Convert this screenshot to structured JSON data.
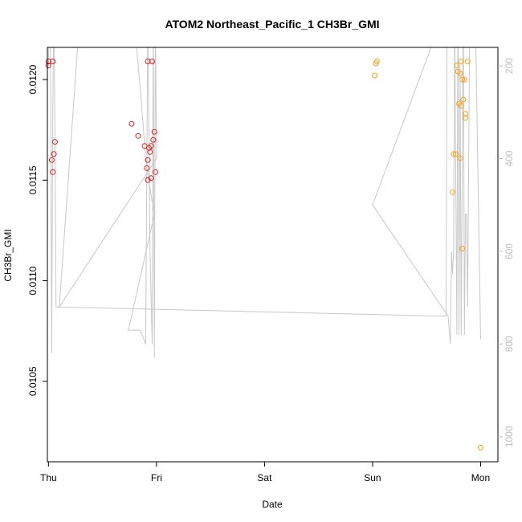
{
  "chart_data": {
    "type": "scatter",
    "title": "ATOM2 Northeast_Pacific_1 CH3Br_GMI",
    "xlabel": "Date",
    "ylabel": "CH3Br_GMI",
    "x_ticks": [
      "Thu",
      "Fri",
      "Sat",
      "Sun",
      "Mon"
    ],
    "xlim": [
      -0.01,
      4.16
    ],
    "y_ticks": [
      "0.0105",
      "0.0110",
      "0.0115",
      "0.0120"
    ],
    "ylim": [
      0.0101,
      0.01216
    ],
    "y2_ticks": [
      "200",
      "400",
      "600",
      "800",
      "1000"
    ],
    "y2lim": [
      1054,
      160
    ],
    "y2_color": "#bdbdbd",
    "grid": false,
    "series": [
      {
        "color": "#e41a1c",
        "points": [
          {
            "x": 0.0,
            "y": 0.01209
          },
          {
            "x": 0.0,
            "y": 0.01207
          },
          {
            "x": 0.04,
            "y": 0.01209
          },
          {
            "x": 0.06,
            "y": 0.01169
          },
          {
            "x": 0.05,
            "y": 0.01163
          },
          {
            "x": 0.03,
            "y": 0.0116
          },
          {
            "x": 0.04,
            "y": 0.01154
          },
          {
            "x": 0.77,
            "y": 0.01178
          },
          {
            "x": 0.83,
            "y": 0.01172
          },
          {
            "x": 0.89,
            "y": 0.01167
          },
          {
            "x": 0.92,
            "y": 0.01209
          },
          {
            "x": 0.96,
            "y": 0.01209
          },
          {
            "x": 0.93,
            "y": 0.01166
          },
          {
            "x": 0.95,
            "y": 0.01167
          },
          {
            "x": 0.94,
            "y": 0.01164
          },
          {
            "x": 0.97,
            "y": 0.0117
          },
          {
            "x": 0.98,
            "y": 0.01174
          },
          {
            "x": 0.92,
            "y": 0.0116
          },
          {
            "x": 0.91,
            "y": 0.01156
          },
          {
            "x": 0.99,
            "y": 0.01154
          },
          {
            "x": 0.95,
            "y": 0.01151
          },
          {
            "x": 0.92,
            "y": 0.0115
          }
        ]
      },
      {
        "color": "#ff9f1c",
        "points": [
          {
            "x": 3.04,
            "y": 0.01209
          },
          {
            "x": 3.03,
            "y": 0.01208
          },
          {
            "x": 3.02,
            "y": 0.01202
          },
          {
            "x": 3.74,
            "y": 0.01144
          },
          {
            "x": 3.75,
            "y": 0.01163
          },
          {
            "x": 3.77,
            "y": 0.01163
          },
          {
            "x": 3.78,
            "y": 0.01207
          },
          {
            "x": 3.79,
            "y": 0.01204
          },
          {
            "x": 3.8,
            "y": 0.01188
          },
          {
            "x": 3.81,
            "y": 0.01203
          },
          {
            "x": 3.82,
            "y": 0.01209
          },
          {
            "x": 3.82,
            "y": 0.01187
          },
          {
            "x": 3.81,
            "y": 0.01161
          },
          {
            "x": 3.83,
            "y": 0.012
          },
          {
            "x": 3.84,
            "y": 0.0119
          },
          {
            "x": 3.85,
            "y": 0.012
          },
          {
            "x": 3.86,
            "y": 0.01183
          },
          {
            "x": 3.86,
            "y": 0.01181
          },
          {
            "x": 3.88,
            "y": 0.01209
          },
          {
            "x": 3.83,
            "y": 0.01116
          },
          {
            "x": 4.0,
            "y": 0.01017
          }
        ]
      }
    ],
    "altitude_trace": {
      "color": "#c8c8c8",
      "axis": "right",
      "points": [
        [
          0.0,
          200
        ],
        [
          0.01,
          80
        ],
        [
          0.02,
          200
        ],
        [
          0.03,
          820
        ],
        [
          0.04,
          300
        ],
        [
          0.05,
          60
        ],
        [
          0.06,
          350
        ],
        [
          0.07,
          720
        ],
        [
          0.1,
          720
        ],
        [
          0.3,
          60
        ],
        [
          0.75,
          80
        ],
        [
          0.8,
          120
        ],
        [
          0.85,
          250
        ],
        [
          0.9,
          400
        ],
        [
          0.95,
          480
        ],
        [
          0.98,
          520
        ],
        [
          0.74,
          770
        ],
        [
          0.85,
          770
        ],
        [
          0.9,
          800
        ],
        [
          0.92,
          80
        ],
        [
          0.94,
          600
        ],
        [
          0.96,
          800
        ],
        [
          0.97,
          80
        ],
        [
          0.98,
          830
        ],
        [
          0.99,
          100
        ],
        [
          1.0,
          400
        ],
        [
          0.1,
          720
        ],
        [
          3.68,
          740
        ],
        [
          3.69,
          60
        ],
        [
          3.7,
          60
        ],
        [
          3.0,
          500
        ],
        [
          3.7,
          740
        ],
        [
          3.72,
          800
        ],
        [
          3.73,
          600
        ],
        [
          3.74,
          650
        ],
        [
          3.75,
          600
        ],
        [
          3.76,
          100
        ],
        [
          3.78,
          780
        ],
        [
          3.79,
          60
        ],
        [
          3.8,
          780
        ],
        [
          3.81,
          200
        ],
        [
          3.82,
          780
        ],
        [
          3.84,
          60
        ],
        [
          3.85,
          780
        ],
        [
          3.86,
          520
        ],
        [
          3.87,
          520
        ],
        [
          3.88,
          720
        ],
        [
          3.9,
          70
        ],
        [
          3.95,
          70
        ],
        [
          4.0,
          790
        ]
      ]
    }
  }
}
